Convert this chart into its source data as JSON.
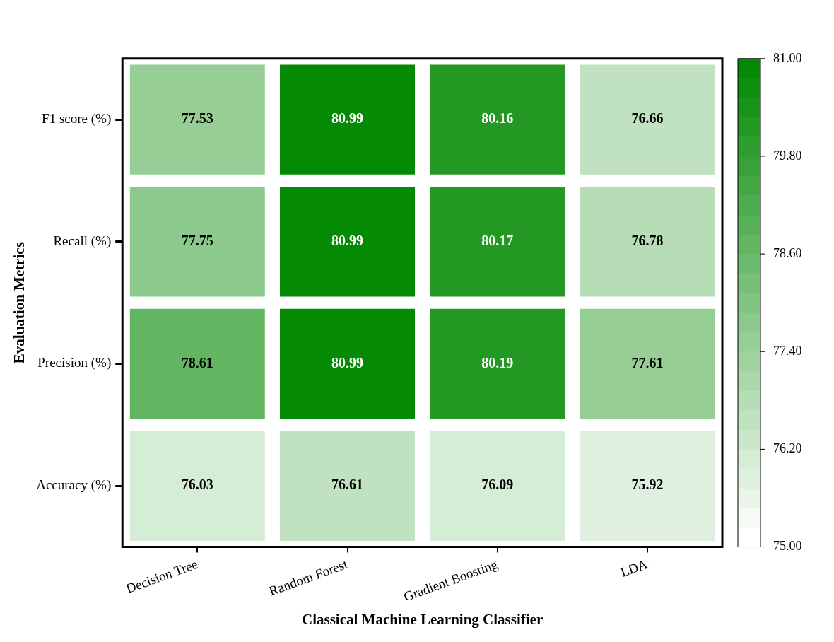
{
  "chart_data": {
    "type": "heatmap",
    "xlabel": "Classical Machine Learning Classifier",
    "ylabel": "Evaluation Metrics",
    "categories": [
      "Decision Tree",
      "Random Forest",
      "Gradient Boosting",
      "LDA"
    ],
    "y_categories": [
      "F1 score (%)",
      "Recall (%)",
      "Precision (%)",
      "Accuracy (%)"
    ],
    "cells": [
      [
        77.53,
        80.99,
        80.16,
        76.66
      ],
      [
        77.75,
        80.99,
        80.17,
        76.78
      ],
      [
        78.61,
        80.99,
        80.19,
        77.61
      ],
      [
        76.03,
        76.61,
        76.09,
        75.92
      ]
    ],
    "clim": [
      75,
      81
    ],
    "cticks": [
      {
        "value": 75,
        "label": "75.00"
      },
      {
        "value": 76.2,
        "label": "76.20"
      },
      {
        "value": 77.4,
        "label": "77.40"
      },
      {
        "value": 78.6,
        "label": "78.60"
      },
      {
        "value": 79.8,
        "label": "79.80"
      },
      {
        "value": 81,
        "label": "81.00"
      }
    ],
    "data_labels": true
  }
}
